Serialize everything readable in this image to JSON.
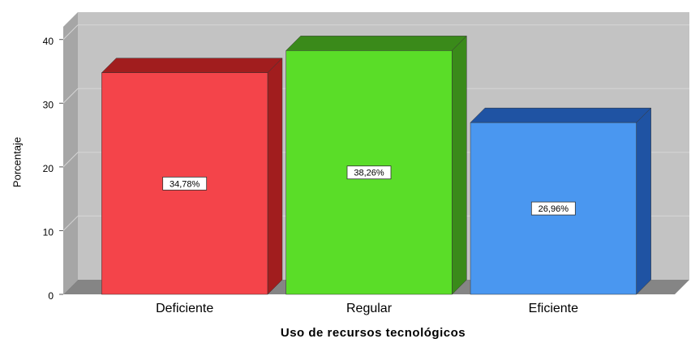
{
  "chart_data": {
    "type": "bar3d",
    "x_label": "Uso de recursos tecnológicos",
    "y_label": "Porcentaje",
    "categories": [
      "Deficiente",
      "Regular",
      "Eficiente"
    ],
    "values": [
      34.78,
      38.26,
      26.96
    ],
    "value_labels": [
      "34,78%",
      "38,26%",
      "26,96%"
    ],
    "colors": [
      "#f4444a",
      "#5add28",
      "#4a97f0"
    ],
    "side_colors": [
      "#a11d1e",
      "#3a8a1a",
      "#1f53a3"
    ],
    "ylim": [
      0,
      42
    ],
    "yticks": [
      0,
      10,
      20,
      30,
      40
    ],
    "grid": true
  }
}
